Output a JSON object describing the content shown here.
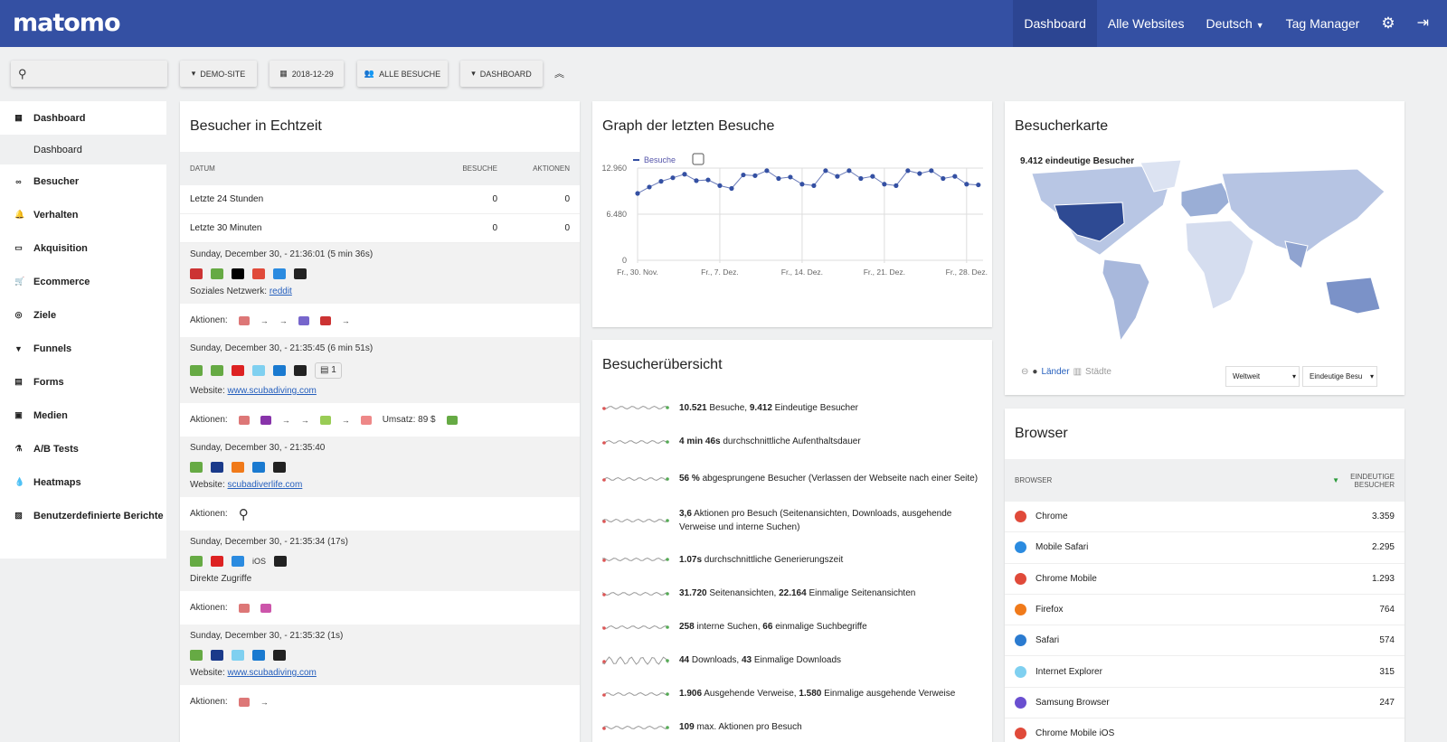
{
  "header": {
    "logo": "matomo",
    "nav": [
      "Dashboard",
      "Alle Websites",
      "Deutsch",
      "Tag Manager"
    ],
    "icons": [
      "gear-icon",
      "logout-icon"
    ]
  },
  "toolbar": {
    "site": "DEMO-SITE",
    "date": "2018-12-29",
    "segment": "ALLE BESUCHE",
    "dashboard": "DASHBOARD",
    "search_placeholder": ""
  },
  "sidebar": {
    "items": [
      {
        "label": "Dashboard",
        "icon": "grid-icon"
      },
      {
        "label": "Dashboard",
        "sub": true
      },
      {
        "label": "Besucher",
        "icon": "binoculars-icon"
      },
      {
        "label": "Verhalten",
        "icon": "bell-icon"
      },
      {
        "label": "Akquisition",
        "icon": "window-icon"
      },
      {
        "label": "Ecommerce",
        "icon": "cart-icon"
      },
      {
        "label": "Ziele",
        "icon": "target-icon"
      },
      {
        "label": "Funnels",
        "icon": "funnel-icon"
      },
      {
        "label": "Forms",
        "icon": "clipboard-icon"
      },
      {
        "label": "Medien",
        "icon": "media-icon"
      },
      {
        "label": "A/B Tests",
        "icon": "flask-icon"
      },
      {
        "label": "Heatmaps",
        "icon": "drop-icon"
      },
      {
        "label": "Benutzerdefinierte Berichte",
        "icon": "report-icon"
      }
    ]
  },
  "realtime": {
    "title": "Besucher in Echtzeit",
    "cols": [
      "DATUM",
      "BESUCHE",
      "AKTIONEN"
    ],
    "summary": [
      [
        "Letzte 24 Stunden",
        "0",
        "0"
      ],
      [
        "Letzte 30 Minuten",
        "0",
        "0"
      ]
    ],
    "visits": [
      {
        "time": "Sunday, December 30, - 21:36:01 (5 min 36s)",
        "ref_label": "Soziales Netzwerk:",
        "ref": "reddit",
        "actions_label": "Aktionen:",
        "extra": ""
      },
      {
        "time": "Sunday, December 30, - 21:35:45 (6 min 51s)",
        "ref_label": "Website:",
        "ref": "www.scubadiving.com",
        "actions_label": "Aktionen:",
        "badge": "1",
        "extra": "Umsatz: 89 $"
      },
      {
        "time": "Sunday, December 30, - 21:35:40",
        "ref_label": "Website:",
        "ref": "scubadiverlife.com",
        "actions_label": "Aktionen:",
        "extra": ""
      },
      {
        "time": "Sunday, December 30, - 21:35:34 (17s)",
        "ref_label": "Direkte Zugriffe",
        "ref": "",
        "os": "iOS",
        "actions_label": "Aktionen:",
        "extra": ""
      },
      {
        "time": "Sunday, December 30, - 21:35:32 (1s)",
        "ref_label": "Website:",
        "ref": "www.scubadiving.com",
        "actions_label": "Aktionen:",
        "extra": ""
      }
    ]
  },
  "graph": {
    "title": "Graph der letzten Besuche"
  },
  "chart_data": {
    "type": "line",
    "legend": "top-left",
    "grid": true,
    "series": [
      {
        "name": "Besuche",
        "color": "#3450a3",
        "values": [
          9400,
          10300,
          11100,
          11600,
          12100,
          11200,
          11300,
          10500,
          10100,
          12000,
          11900,
          12600,
          11500,
          11700,
          10700,
          10500,
          12600,
          11800,
          12600,
          11500,
          11800,
          10700,
          10500,
          12600,
          12200,
          12600,
          11500,
          11800,
          10700,
          10600
        ]
      }
    ],
    "x_start": "2018-11-30",
    "x_end": "2018-12-29",
    "x_ticks": [
      "Fr., 30. Nov.",
      "Fr., 7. Dez.",
      "Fr., 14. Dez.",
      "Fr., 21. Dez.",
      "Fr., 28. Dez."
    ],
    "y_ticks": [
      "0",
      "6.480",
      "12.960"
    ],
    "ylim": [
      0,
      12960
    ]
  },
  "overview": {
    "title": "Besucherübersicht",
    "items": [
      [
        [
          "10.521",
          true
        ],
        " Besuche, ",
        [
          "9.412",
          true
        ],
        " Eindeutige Besucher"
      ],
      [
        [
          "4 min 46s",
          true
        ],
        " durchschnittliche Aufenthaltsdauer"
      ],
      [
        [
          "56 %",
          true
        ],
        " abgesprungene Besucher (Verlassen der Webseite nach einer Seite)"
      ],
      [
        [
          "3,6",
          true
        ],
        " Aktionen pro Besuch (Seitenansichten, Downloads, ausgehende Verweise und interne Suchen)"
      ],
      [
        [
          "1.07s",
          true
        ],
        " durchschnittliche Generierungszeit"
      ],
      [
        [
          "31.720",
          true
        ],
        " Seitenansichten, ",
        [
          "22.164",
          true
        ],
        " Einmalige Seitenansichten"
      ],
      [
        [
          "258",
          true
        ],
        " interne Suchen, ",
        [
          "66",
          true
        ],
        " einmalige Suchbegriffe"
      ],
      [
        [
          "44",
          true
        ],
        " Downloads, ",
        [
          "43",
          true
        ],
        " Einmalige Downloads"
      ],
      [
        [
          "1.906",
          true
        ],
        " Ausgehende Verweise, ",
        [
          "1.580",
          true
        ],
        " Einmalige ausgehende Verweise"
      ],
      [
        [
          "109",
          true
        ],
        " max. Aktionen pro Besuch"
      ]
    ]
  },
  "map": {
    "title": "Besucherkarte",
    "label": "9.412 eindeutige Besucher",
    "countries": "Länder",
    "cities": "Städte",
    "region": "Weltweit",
    "metric": "Eindeutige Besu"
  },
  "browser": {
    "title": "Browser",
    "cols": [
      "BROWSER",
      "EINDEUTIGE BESUCHER"
    ],
    "rows": [
      {
        "name": "Chrome",
        "value": "3.359",
        "color": "#e04a3a"
      },
      {
        "name": "Mobile Safari",
        "value": "2.295",
        "color": "#2b8be0"
      },
      {
        "name": "Chrome Mobile",
        "value": "1.293",
        "color": "#e04a3a"
      },
      {
        "name": "Firefox",
        "value": "764",
        "color": "#f07a1a"
      },
      {
        "name": "Safari",
        "value": "574",
        "color": "#2b7bd0"
      },
      {
        "name": "Internet Explorer",
        "value": "315",
        "color": "#7fd0f0"
      },
      {
        "name": "Samsung Browser",
        "value": "247",
        "color": "#6a4fd0"
      },
      {
        "name": "Chrome Mobile iOS",
        "value": "",
        "color": "#e04a3a"
      }
    ]
  }
}
